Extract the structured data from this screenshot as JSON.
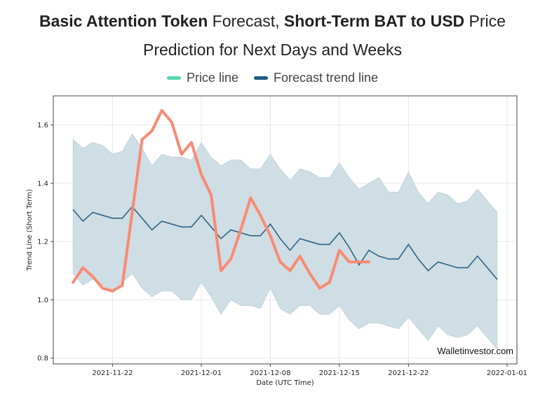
{
  "title": {
    "line1_bold_a": "Basic Attention Token",
    "line1_normal_a": " Forecast, ",
    "line1_bold_b": "Short-Term BAT to USD",
    "line1_normal_b": " Price",
    "line2": "Prediction for Next Days and Weeks"
  },
  "legend": [
    {
      "label": "Price line",
      "color": "#5ad6b4"
    },
    {
      "label": "Forecast trend line",
      "color": "#1c5b7f"
    }
  ],
  "watermark": "Walletinvestor.com",
  "colors": {
    "price": "#fa8a72",
    "forecast": "#2f6585",
    "band": "#cfdde4",
    "band_edge": "#b8cbd4",
    "grid": "#e6e6e6",
    "axis": "#444444"
  },
  "chart_data": {
    "type": "line",
    "xlabel": "Date (UTC Time)",
    "ylabel": "Trend Line (Short Term)",
    "ylim": [
      0.78,
      1.7
    ],
    "xlim": [
      "2021-11-16",
      "2022-01-02"
    ],
    "yticks": [
      0.8,
      1.0,
      1.2,
      1.4,
      1.6
    ],
    "ytick_labels": [
      "0.8",
      "1.0",
      "1.2",
      "1.4",
      "1.6"
    ],
    "xticks": [
      "2021-11-22",
      "2021-12-01",
      "2021-12-08",
      "2021-12-15",
      "2021-12-22",
      "2022-01-01"
    ],
    "grid": true,
    "legend_position": "top-center",
    "series": [
      {
        "name": "Price line",
        "x": [
          "2021-11-18",
          "2021-11-19",
          "2021-11-20",
          "2021-11-21",
          "2021-11-22",
          "2021-11-23",
          "2021-11-24",
          "2021-11-25",
          "2021-11-26",
          "2021-11-27",
          "2021-11-28",
          "2021-11-29",
          "2021-11-30",
          "2021-12-01",
          "2021-12-02",
          "2021-12-03",
          "2021-12-04",
          "2021-12-05",
          "2021-12-06",
          "2021-12-07",
          "2021-12-08",
          "2021-12-09",
          "2021-12-10",
          "2021-12-11",
          "2021-12-12",
          "2021-12-13",
          "2021-12-14",
          "2021-12-15",
          "2021-12-16",
          "2021-12-17",
          "2021-12-18"
        ],
        "values": [
          1.06,
          1.11,
          1.08,
          1.04,
          1.03,
          1.05,
          1.3,
          1.55,
          1.58,
          1.65,
          1.61,
          1.5,
          1.54,
          1.43,
          1.36,
          1.1,
          1.14,
          1.24,
          1.35,
          1.29,
          1.22,
          1.13,
          1.1,
          1.15,
          1.09,
          1.04,
          1.06,
          1.17,
          1.13,
          1.13,
          1.13
        ]
      },
      {
        "name": "Forecast trend line",
        "x": [
          "2021-11-18",
          "2021-11-19",
          "2021-11-20",
          "2021-11-21",
          "2021-11-22",
          "2021-11-23",
          "2021-11-24",
          "2021-11-25",
          "2021-11-26",
          "2021-11-27",
          "2021-11-28",
          "2021-11-29",
          "2021-11-30",
          "2021-12-01",
          "2021-12-02",
          "2021-12-03",
          "2021-12-04",
          "2021-12-05",
          "2021-12-06",
          "2021-12-07",
          "2021-12-08",
          "2021-12-09",
          "2021-12-10",
          "2021-12-11",
          "2021-12-12",
          "2021-12-13",
          "2021-12-14",
          "2021-12-15",
          "2021-12-16",
          "2021-12-17",
          "2021-12-18",
          "2021-12-19",
          "2021-12-20",
          "2021-12-21",
          "2021-12-22",
          "2021-12-23",
          "2021-12-24",
          "2021-12-25",
          "2021-12-26",
          "2021-12-27",
          "2021-12-28",
          "2021-12-29",
          "2021-12-30",
          "2021-12-31"
        ],
        "values": [
          1.31,
          1.27,
          1.3,
          1.29,
          1.28,
          1.28,
          1.32,
          1.28,
          1.24,
          1.27,
          1.26,
          1.25,
          1.25,
          1.29,
          1.25,
          1.21,
          1.24,
          1.23,
          1.22,
          1.22,
          1.26,
          1.21,
          1.17,
          1.21,
          1.2,
          1.19,
          1.19,
          1.23,
          1.18,
          1.12,
          1.17,
          1.15,
          1.14,
          1.14,
          1.19,
          1.14,
          1.1,
          1.13,
          1.12,
          1.11,
          1.11,
          1.15,
          1.11,
          1.07
        ],
        "upper": [
          1.55,
          1.52,
          1.54,
          1.53,
          1.5,
          1.51,
          1.57,
          1.52,
          1.46,
          1.5,
          1.49,
          1.49,
          1.48,
          1.54,
          1.49,
          1.46,
          1.48,
          1.48,
          1.45,
          1.45,
          1.5,
          1.45,
          1.41,
          1.45,
          1.44,
          1.42,
          1.42,
          1.47,
          1.42,
          1.38,
          1.4,
          1.42,
          1.37,
          1.37,
          1.44,
          1.37,
          1.33,
          1.37,
          1.36,
          1.33,
          1.34,
          1.38,
          1.34,
          1.3
        ],
        "lower": [
          1.09,
          1.05,
          1.07,
          1.05,
          1.03,
          1.06,
          1.09,
          1.04,
          1.01,
          1.03,
          1.03,
          1.0,
          1.0,
          1.06,
          1.01,
          0.95,
          1.0,
          0.98,
          0.98,
          0.97,
          1.04,
          0.97,
          0.95,
          0.98,
          0.98,
          0.95,
          0.95,
          0.98,
          0.93,
          0.9,
          0.92,
          0.92,
          0.91,
          0.9,
          0.94,
          0.9,
          0.86,
          0.91,
          0.88,
          0.87,
          0.88,
          0.91,
          0.87,
          0.83
        ]
      }
    ]
  }
}
